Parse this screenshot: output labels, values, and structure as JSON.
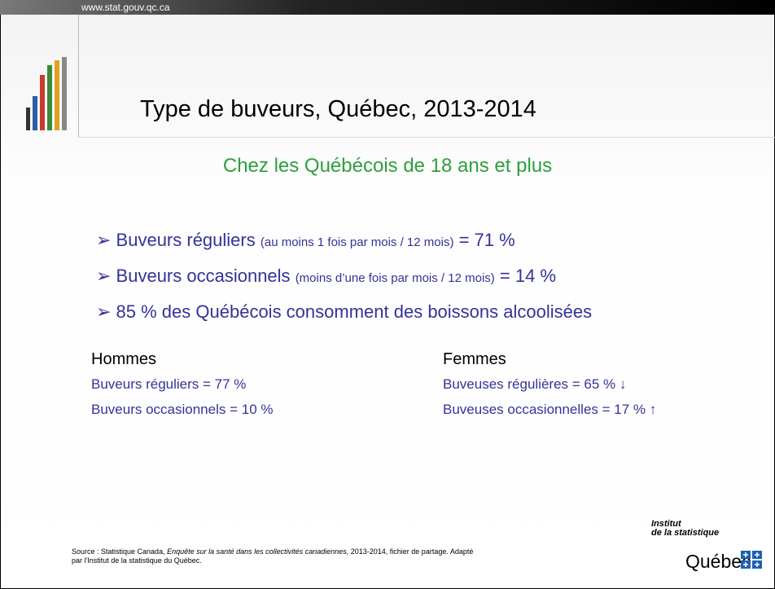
{
  "header": {
    "url": "www.stat.gouv.qc.ca",
    "title": "Type de buveurs, Québec, 2013-2014",
    "subtitle": "Chez les Québécois de 18 ans et plus"
  },
  "bullets": [
    {
      "main": "Buveurs réguliers",
      "note": "(au moins 1 fois par mois / 12 mois)",
      "result": "= 71 %"
    },
    {
      "main": "Buveurs occasionnels",
      "note": "(moins d’une fois par mois / 12 mois)",
      "result": "= 14 %"
    },
    {
      "main": "85 % des Québécois consomment des boissons alcoolisées"
    }
  ],
  "columns": [
    {
      "heading": "Hommes",
      "lines": [
        "Buveurs réguliers = 77 %",
        "Buveurs occasionnels = 10 %"
      ]
    },
    {
      "heading": "Femmes",
      "lines": [
        "Buveuses régulières = 65 % ↓",
        "Buveuses occasionnelles = 17 % ↑"
      ]
    }
  ],
  "source": {
    "prefix": "Source : Statistique Canada,",
    "title": "Enquête sur la santé dans les collectivités canadiennes,",
    "suffix": "2013-2014, fichier de partage. Adapté",
    "line2": "par l'Institut de la statistique du Québec."
  },
  "logo": {
    "line1": "Institut",
    "line2": "de la statistique",
    "line3": "Québec"
  }
}
